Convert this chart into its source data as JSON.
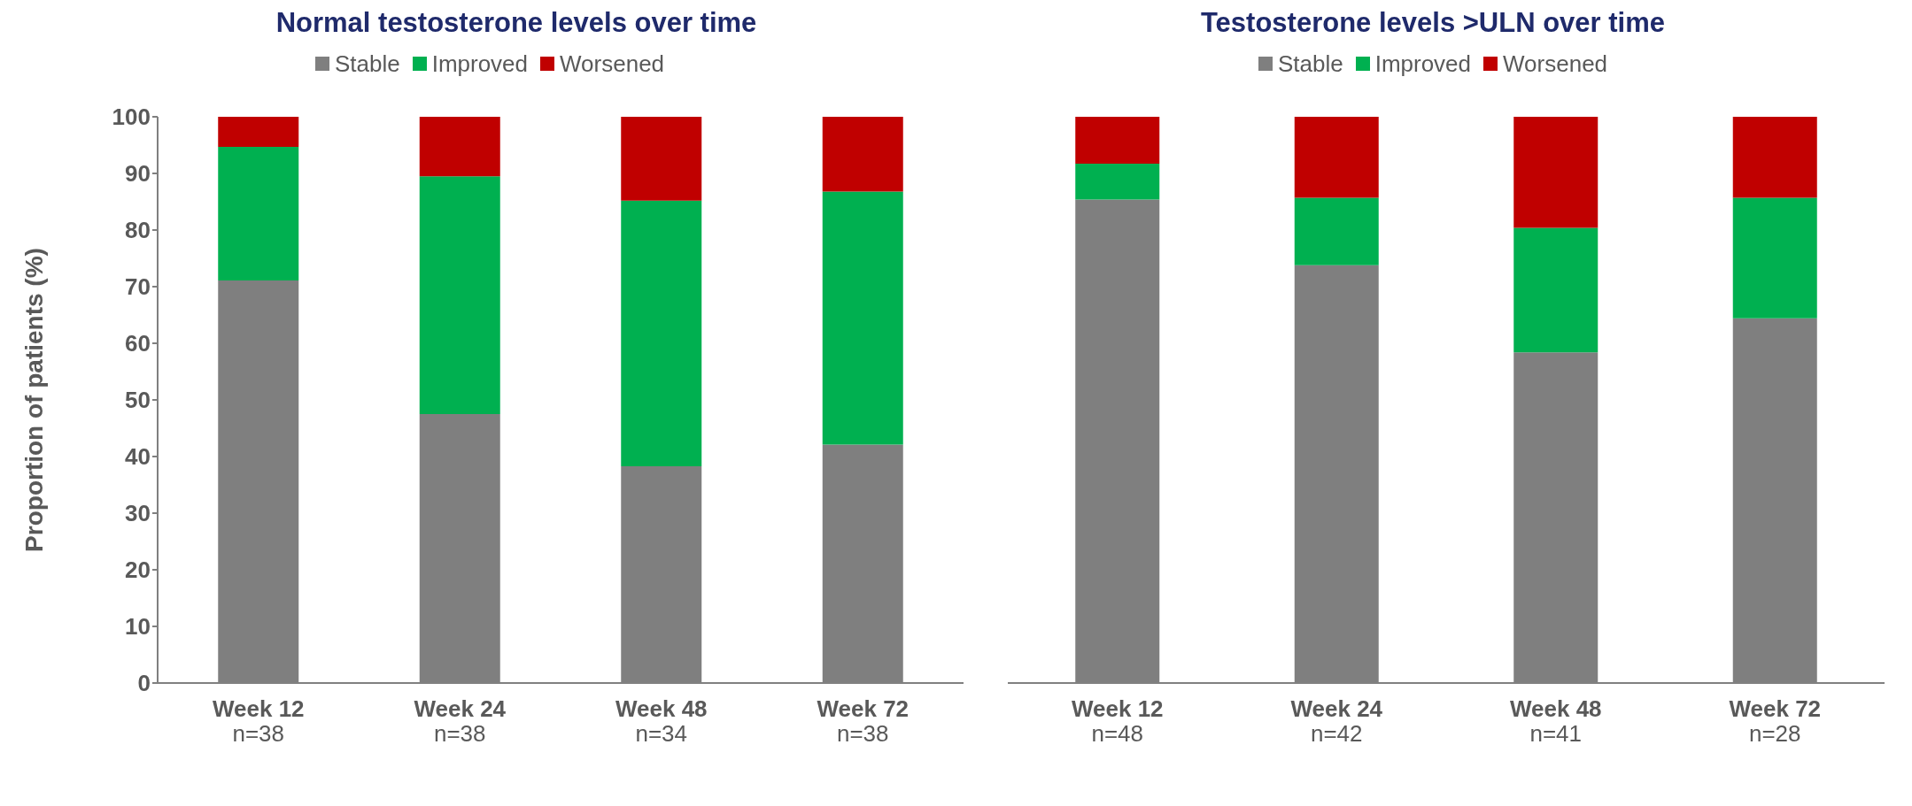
{
  "chart_data": [
    {
      "type": "bar",
      "title": "Normal testosterone levels over time",
      "ylabel": "Proportion of patients (%)",
      "stacked": true,
      "legend": "top",
      "grid": false,
      "categories": [
        "Week 12\nn=38",
        "Week 24\nn=38",
        "Week 48\nn=34",
        "Week 72\nn=38"
      ],
      "ylim": [
        0,
        100
      ],
      "yticks": [
        0,
        10,
        20,
        30,
        40,
        50,
        60,
        70,
        80,
        90,
        100
      ],
      "series": [
        {
          "name": "Stable",
          "color": "#7f7f7f",
          "values": [
            71.1,
            47.5,
            38.3,
            42.1
          ]
        },
        {
          "name": "Improved",
          "color": "#00b050",
          "values": [
            23.6,
            42.0,
            46.9,
            44.7
          ]
        },
        {
          "name": "Worsened",
          "color": "#c00000",
          "values": [
            5.3,
            10.5,
            14.8,
            13.2
          ]
        }
      ]
    },
    {
      "type": "bar",
      "title": "Testosterone levels >ULN over time",
      "stacked": true,
      "legend": "top",
      "grid": false,
      "tick_labels": "x",
      "categories": [
        "Week 12\nn=48",
        "Week 24\nn=42",
        "Week 48\nn=41",
        "Week 72\nn=28"
      ],
      "ylim": [
        0,
        100
      ],
      "yticks": [
        0,
        10,
        20,
        30,
        40,
        50,
        60,
        70,
        80,
        90,
        100
      ],
      "series": [
        {
          "name": "Stable",
          "color": "#7f7f7f",
          "values": [
            85.4,
            73.8,
            58.4,
            64.4
          ]
        },
        {
          "name": "Improved",
          "color": "#00b050",
          "values": [
            6.3,
            11.9,
            22.0,
            21.3
          ]
        },
        {
          "name": "Worsened",
          "color": "#c00000",
          "values": [
            8.3,
            14.3,
            19.6,
            14.3
          ]
        }
      ]
    }
  ]
}
